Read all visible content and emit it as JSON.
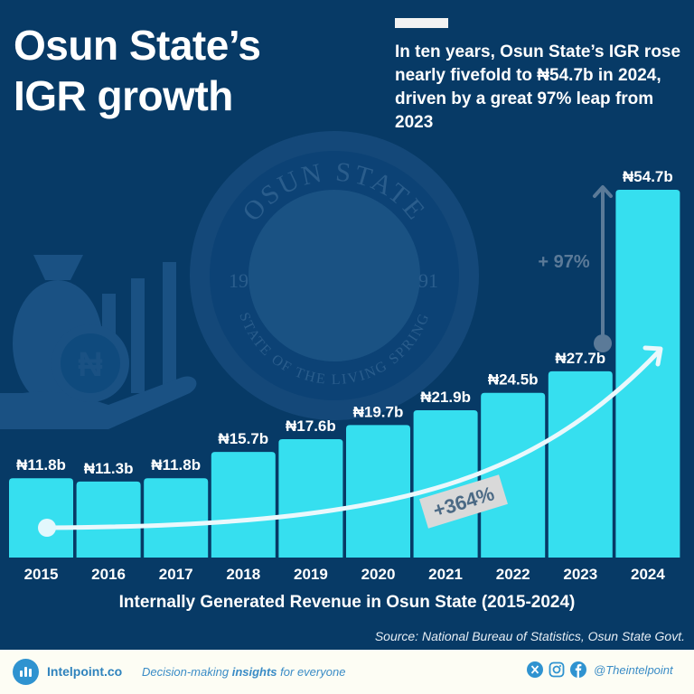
{
  "header": {
    "title_line1": "Osun State’s",
    "title_line2": "IGR growth",
    "subtitle": "In ten years, Osun State’s IGR rose nearly fivefold to ₦54.7b in 2024, driven by a great 97% leap from 2023"
  },
  "annotations": {
    "growth_total": "+364%",
    "growth_last_year": "+ 97%"
  },
  "watermark": {
    "seal_top_text": "OSUN STATE",
    "seal_bottom_text": "STATE OF THE LIVING SPRING",
    "seal_year_left": "19",
    "seal_year_right": "91",
    "icon": "money-bag-hand-naira-icon"
  },
  "chart_data": {
    "type": "bar",
    "title": "Internally Generated Revenue in Osun State (2015-2024)",
    "xlabel": "Internally Generated Revenue in Osun State (2015-2024)",
    "ylabel": "",
    "unit": "₦ billion",
    "categories": [
      "2015",
      "2016",
      "2017",
      "2018",
      "2019",
      "2020",
      "2021",
      "2022",
      "2023",
      "2024"
    ],
    "values": [
      11.8,
      11.3,
      11.8,
      15.7,
      17.6,
      19.7,
      21.9,
      24.5,
      27.7,
      54.7
    ],
    "labels": [
      "₦11.8b",
      "₦11.3b",
      "₦11.8b",
      "₦15.7b",
      "₦17.6b",
      "₦19.7b",
      "₦21.9b",
      "₦24.5b",
      "₦27.7b",
      "₦54.7b"
    ],
    "ylim": [
      0,
      60
    ],
    "grid": false,
    "legend": "none",
    "annotations": [
      "+364%",
      "+ 97%"
    ],
    "bar_color": "#36dfef"
  },
  "source": "Source: National Bureau of Statistics, Osun State Govt.",
  "footer": {
    "brand": "Intelpoint.co",
    "tagline_pre": "Decision-making ",
    "tagline_bold": "insights",
    "tagline_post": " for everyone",
    "social_icons": [
      "x-icon",
      "instagram-icon",
      "facebook-icon"
    ],
    "handle": "@Theintelpoint"
  }
}
